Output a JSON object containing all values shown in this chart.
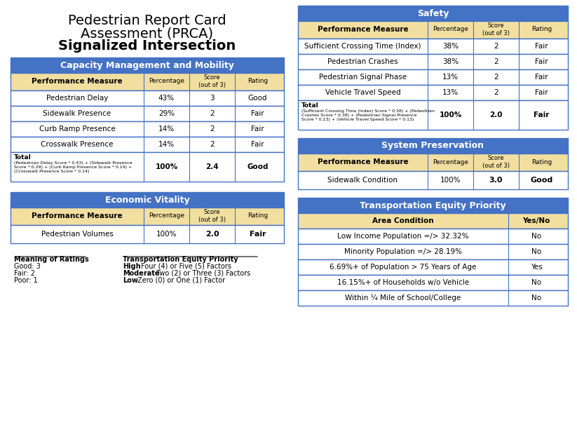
{
  "title_line1": "Pedestrian Report Card",
  "title_line2": "Assessment (PRCA)",
  "title_line3": "Signalized Intersection",
  "header_blue": "#4472C4",
  "header_tan": "#F2DFA0",
  "white": "#FFFFFF",
  "black": "#000000",
  "border_color": "#4472C4",
  "cap_mob": {
    "title": "Capacity Management and Mobility",
    "col_headers": [
      "Performance Measure",
      "Percentage",
      "Score\n(out of 3)",
      "Rating"
    ],
    "rows": [
      [
        "Pedestrian Delay",
        "43%",
        "3",
        "Good"
      ],
      [
        "Sidewalk Presence",
        "29%",
        "2",
        "Fair"
      ],
      [
        "Curb Ramp Presence",
        "14%",
        "2",
        "Fair"
      ],
      [
        "Crosswalk Presence",
        "14%",
        "2",
        "Fair"
      ]
    ],
    "total_label": "Total",
    "total_formula": "(Pedestrian Delay Score * 0.43) + (Sidewalk Presence\nScore * 0.29) + (Curb Ramp Presence Score * 0.14) +\n(Crosswalk Presence Score * 0.14)",
    "total_row": [
      "100%",
      "2.4",
      "Good"
    ]
  },
  "econ_vitality": {
    "title": "Economic Vitality",
    "col_headers": [
      "Performance Measure",
      "Percentage",
      "Score\n(out of 3)",
      "Rating"
    ],
    "rows": [
      [
        "Pedestrian Volumes",
        "100%",
        "2.0",
        "Fair"
      ]
    ]
  },
  "safety": {
    "title": "Safety",
    "col_headers": [
      "Performance Measure",
      "Percentage",
      "Score\n(out of 3)",
      "Rating"
    ],
    "rows": [
      [
        "Sufficient Crossing Time (Index)",
        "38%",
        "2",
        "Fair"
      ],
      [
        "Pedestrian Crashes",
        "38%",
        "2",
        "Fair"
      ],
      [
        "Pedestrian Signal Phase",
        "13%",
        "2",
        "Fair"
      ],
      [
        "Vehicle Travel Speed",
        "13%",
        "2",
        "Fair"
      ]
    ],
    "total_label": "Total",
    "total_formula": "(Sufficient Crossing Time (Index) Score * 0.38) + (Pedestrian\nCrashes Score * 0.38) + (Pedestrian Signal Presence\nScore * 0.13) + (Vehicle Travel Speed Score * 0.13)",
    "total_row": [
      "100%",
      "2.0",
      "Fair"
    ]
  },
  "sys_pres": {
    "title": "System Preservation",
    "col_headers": [
      "Performance Measure",
      "Percentage",
      "Score\n(out of 3)",
      "Rating"
    ],
    "rows": [
      [
        "Sidewalk Condition",
        "100%",
        "3.0",
        "Good"
      ]
    ]
  },
  "equity": {
    "title": "Transportation Equity Priority",
    "col_headers": [
      "Area Condition",
      "Yes/No"
    ],
    "rows": [
      [
        "Low Income Population =/> 32.32%",
        "No"
      ],
      [
        "Minority Population =/> 28.19%",
        "No"
      ],
      [
        "6.69%+ of Population > 75 Years of Age",
        "Yes"
      ],
      [
        "16.15%+ of Households w/o Vehicle",
        "No"
      ],
      [
        "Within ¼ Mile of School/College",
        "No"
      ]
    ]
  },
  "footnote_left_header": "Meaning of Ratings",
  "footnote_left": [
    "Good: 3",
    "Fair: 2",
    "Poor: 1"
  ],
  "footnote_right_header": "Transportation Equity Priority",
  "footnote_right_bold": [
    "High",
    "Moderate",
    "Low"
  ],
  "footnote_right_rest": [
    " Four (4) or Five (5) Factors",
    " Two (2) or Three (3) Factors",
    " Zero (0) or One (1) Factor"
  ]
}
